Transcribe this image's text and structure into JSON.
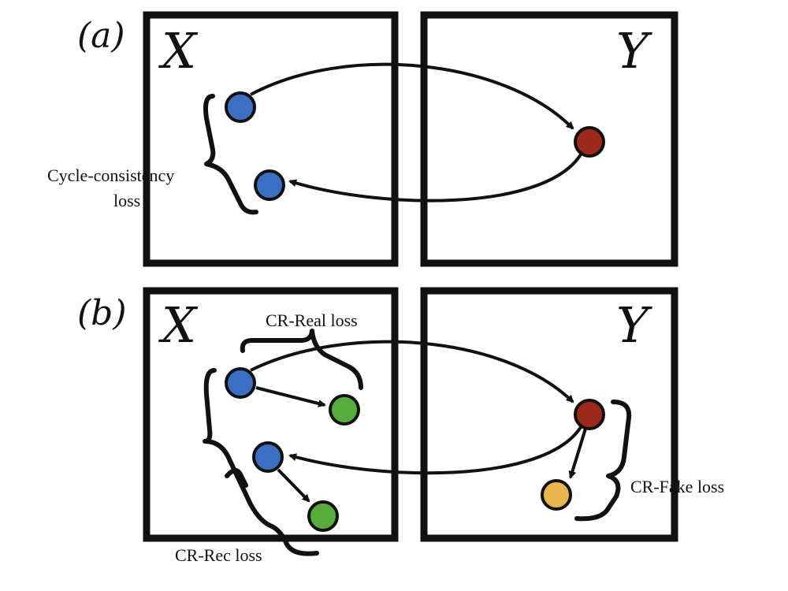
{
  "panels": [
    {
      "label": "(a)",
      "domain_x": "X",
      "domain_y": "Y"
    },
    {
      "label": "(b)",
      "domain_x": "X",
      "domain_y": "Y"
    }
  ],
  "losses": {
    "cycle_line1": "Cycle-consistency",
    "cycle_line2": "loss",
    "cr_real": "CR-Real loss",
    "cr_fake": "CR-Fake loss",
    "cr_rec": "CR-Rec loss"
  },
  "colors": {
    "real_x": "#3a6fc4",
    "translated_y": "#9b2a1c",
    "augmented_x": "#56ad3c",
    "augmented_y": "#e8b64a",
    "stroke": "#111111"
  }
}
